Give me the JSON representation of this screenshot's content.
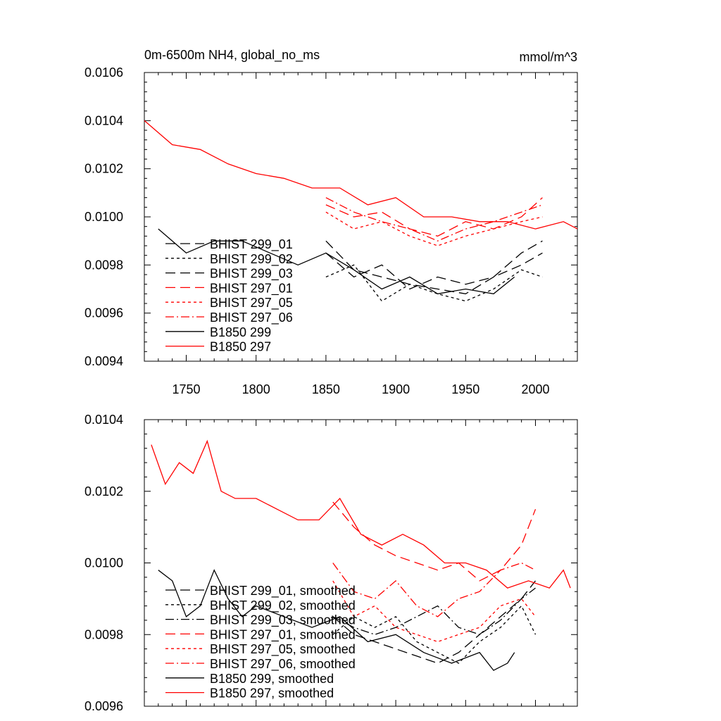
{
  "chart_data": [
    {
      "type": "line",
      "title": "0m-6500m NH4, global_no_ms",
      "units": "mmol/m^3",
      "xlim": [
        1720,
        2030
      ],
      "ylim": [
        0.0094,
        0.0106
      ],
      "x_ticks": [
        1750,
        1800,
        1850,
        1900,
        1950,
        2000
      ],
      "x_tick_labels": [
        "1750",
        "1800",
        "1850",
        "1900",
        "1950",
        "2000"
      ],
      "y_ticks": [
        0.0094,
        0.0096,
        0.0098,
        0.01,
        0.0102,
        0.0104,
        0.0106
      ],
      "y_tick_labels": [
        "0.0094",
        "0.0096",
        "0.0098",
        "0.0100",
        "0.0102",
        "0.0104",
        "0.0106"
      ],
      "grid": false,
      "legend_position": "bottom-left",
      "series": [
        {
          "name": "BHIST 299_01",
          "color": "#000000",
          "dash": "long-dash",
          "x": [
            1850,
            1870,
            1890,
            1910,
            1930,
            1950,
            1970,
            1990,
            2005
          ],
          "y": [
            0.0099,
            0.00978,
            0.00975,
            0.00972,
            0.0097,
            0.00968,
            0.00975,
            0.0098,
            0.00985
          ]
        },
        {
          "name": "BHIST 299_02",
          "color": "#000000",
          "dash": "short-dash",
          "x": [
            1850,
            1870,
            1890,
            1910,
            1930,
            1950,
            1970,
            1990,
            2005
          ],
          "y": [
            0.00975,
            0.0098,
            0.00965,
            0.00972,
            0.00968,
            0.00965,
            0.0097,
            0.00978,
            0.00975
          ]
        },
        {
          "name": "BHIST 299_03",
          "color": "#000000",
          "dash": "long-dash",
          "x": [
            1850,
            1870,
            1890,
            1910,
            1930,
            1950,
            1970,
            1990,
            2005
          ],
          "y": [
            0.00985,
            0.00975,
            0.0098,
            0.0097,
            0.00975,
            0.00972,
            0.00975,
            0.00985,
            0.0099
          ]
        },
        {
          "name": "BHIST 297_01",
          "color": "#ff0000",
          "dash": "long-dash",
          "x": [
            1850,
            1870,
            1890,
            1910,
            1930,
            1950,
            1970,
            1990,
            2005
          ],
          "y": [
            0.01005,
            0.01,
            0.01002,
            0.00995,
            0.00992,
            0.00998,
            0.00995,
            0.01,
            0.01008
          ]
        },
        {
          "name": "BHIST 297_05",
          "color": "#ff0000",
          "dash": "short-dash",
          "x": [
            1850,
            1870,
            1890,
            1910,
            1930,
            1950,
            1970,
            1990,
            2005
          ],
          "y": [
            0.01002,
            0.00995,
            0.00998,
            0.00992,
            0.00988,
            0.00992,
            0.00995,
            0.00998,
            0.01
          ]
        },
        {
          "name": "BHIST 297_06",
          "color": "#ff0000",
          "dash": "dash-dot",
          "x": [
            1850,
            1870,
            1890,
            1910,
            1930,
            1950,
            1970,
            1990,
            2005
          ],
          "y": [
            0.01008,
            0.01002,
            0.00998,
            0.00995,
            0.0099,
            0.00995,
            0.00998,
            0.01002,
            0.01005
          ]
        },
        {
          "name": "B1850 299",
          "color": "#000000",
          "dash": "solid",
          "x": [
            1730,
            1750,
            1770,
            1790,
            1810,
            1830,
            1850,
            1870,
            1890,
            1910,
            1930,
            1950,
            1970,
            1985
          ],
          "y": [
            0.00995,
            0.00985,
            0.0099,
            0.0099,
            0.00985,
            0.0098,
            0.00985,
            0.00978,
            0.0097,
            0.00975,
            0.00968,
            0.0097,
            0.00968,
            0.00975
          ]
        },
        {
          "name": "B1850 297",
          "color": "#ff0000",
          "dash": "solid",
          "x": [
            1720,
            1740,
            1760,
            1780,
            1800,
            1820,
            1840,
            1860,
            1880,
            1900,
            1920,
            1940,
            1960,
            1980,
            2000,
            2020,
            2030
          ],
          "y": [
            0.0104,
            0.0103,
            0.01028,
            0.01022,
            0.01018,
            0.01016,
            0.01012,
            0.01012,
            0.01005,
            0.01008,
            0.01,
            0.01,
            0.00998,
            0.00998,
            0.00995,
            0.00998,
            0.00995
          ]
        }
      ]
    },
    {
      "type": "line",
      "xlim": [
        1720,
        2030
      ],
      "ylim": [
        0.0096,
        0.0104
      ],
      "y_ticks": [
        0.0096,
        0.0098,
        0.01,
        0.0102,
        0.0104
      ],
      "y_tick_labels": [
        "0.0096",
        "0.0098",
        "0.0100",
        "0.0102",
        "0.0104"
      ],
      "x_ticks": [
        1750,
        1800,
        1850,
        1900,
        1950,
        2000
      ],
      "grid": false,
      "legend_position": "bottom-left",
      "series": [
        {
          "name": "BHIST 299_01, smoothed",
          "color": "#000000",
          "dash": "long-dash",
          "x": [
            1855,
            1870,
            1885,
            1900,
            1915,
            1930,
            1945,
            1960,
            1975,
            1990,
            2000
          ],
          "y": [
            0.00985,
            0.0098,
            0.00978,
            0.00976,
            0.00974,
            0.00972,
            0.00975,
            0.0098,
            0.00985,
            0.0099,
            0.00995
          ]
        },
        {
          "name": "BHIST 299_02, smoothed",
          "color": "#000000",
          "dash": "short-dash",
          "x": [
            1855,
            1870,
            1885,
            1900,
            1915,
            1930,
            1945,
            1960,
            1975,
            1990,
            2000
          ],
          "y": [
            0.0098,
            0.00985,
            0.00982,
            0.00985,
            0.00978,
            0.00975,
            0.00972,
            0.00978,
            0.00982,
            0.00988,
            0.0098
          ]
        },
        {
          "name": "BHIST 299_03, smoothed",
          "color": "#000000",
          "dash": "dash-dot",
          "x": [
            1855,
            1870,
            1885,
            1900,
            1915,
            1930,
            1945,
            1960,
            1975,
            1990,
            2000
          ],
          "y": [
            0.00985,
            0.00982,
            0.0098,
            0.00982,
            0.00985,
            0.00988,
            0.00982,
            0.0098,
            0.00984,
            0.0099,
            0.00993
          ]
        },
        {
          "name": "BHIST 297_01, smoothed",
          "color": "#ff0000",
          "dash": "long-dash",
          "x": [
            1855,
            1870,
            1885,
            1900,
            1915,
            1930,
            1945,
            1960,
            1975,
            1990,
            2000
          ],
          "y": [
            0.01017,
            0.0101,
            0.01005,
            0.01002,
            0.01,
            0.00998,
            0.01,
            0.00995,
            0.00998,
            0.01005,
            0.01015
          ]
        },
        {
          "name": "BHIST 297_05, smoothed",
          "color": "#ff0000",
          "dash": "short-dash",
          "x": [
            1855,
            1870,
            1885,
            1900,
            1915,
            1930,
            1945,
            1960,
            1975,
            1990,
            2000
          ],
          "y": [
            0.00995,
            0.00985,
            0.00988,
            0.00982,
            0.0098,
            0.00978,
            0.0098,
            0.00982,
            0.00988,
            0.0099,
            0.00985
          ]
        },
        {
          "name": "BHIST 297_06, smoothed",
          "color": "#ff0000",
          "dash": "dash-dot",
          "x": [
            1855,
            1870,
            1885,
            1900,
            1915,
            1930,
            1945,
            1960,
            1975,
            1990,
            2000
          ],
          "y": [
            0.01,
            0.00992,
            0.0099,
            0.00995,
            0.00988,
            0.00985,
            0.0099,
            0.00992,
            0.00998,
            0.01,
            0.00998
          ]
        },
        {
          "name": "B1850 299, smoothed",
          "color": "#000000",
          "dash": "solid",
          "x": [
            1730,
            1740,
            1750,
            1760,
            1770,
            1780,
            1790,
            1800,
            1820,
            1840,
            1860,
            1880,
            1900,
            1920,
            1940,
            1960,
            1970,
            1980,
            1985
          ],
          "y": [
            0.00998,
            0.00995,
            0.00985,
            0.00988,
            0.00998,
            0.0099,
            0.00985,
            0.00988,
            0.00985,
            0.00982,
            0.00985,
            0.00978,
            0.0098,
            0.00975,
            0.00972,
            0.00975,
            0.0097,
            0.00972,
            0.00975
          ]
        },
        {
          "name": "B1850 297, smoothed",
          "color": "#ff0000",
          "dash": "solid",
          "x": [
            1725,
            1735,
            1745,
            1755,
            1765,
            1775,
            1785,
            1800,
            1815,
            1830,
            1845,
            1860,
            1875,
            1890,
            1905,
            1920,
            1935,
            1950,
            1965,
            1980,
            1995,
            2010,
            2020,
            2025
          ],
          "y": [
            0.01033,
            0.01022,
            0.01028,
            0.01025,
            0.01034,
            0.0102,
            0.01018,
            0.01018,
            0.01015,
            0.01012,
            0.01012,
            0.01018,
            0.01008,
            0.01005,
            0.01008,
            0.01005,
            0.01,
            0.01,
            0.00998,
            0.00993,
            0.00995,
            0.00993,
            0.00998,
            0.00993
          ]
        }
      ]
    }
  ]
}
